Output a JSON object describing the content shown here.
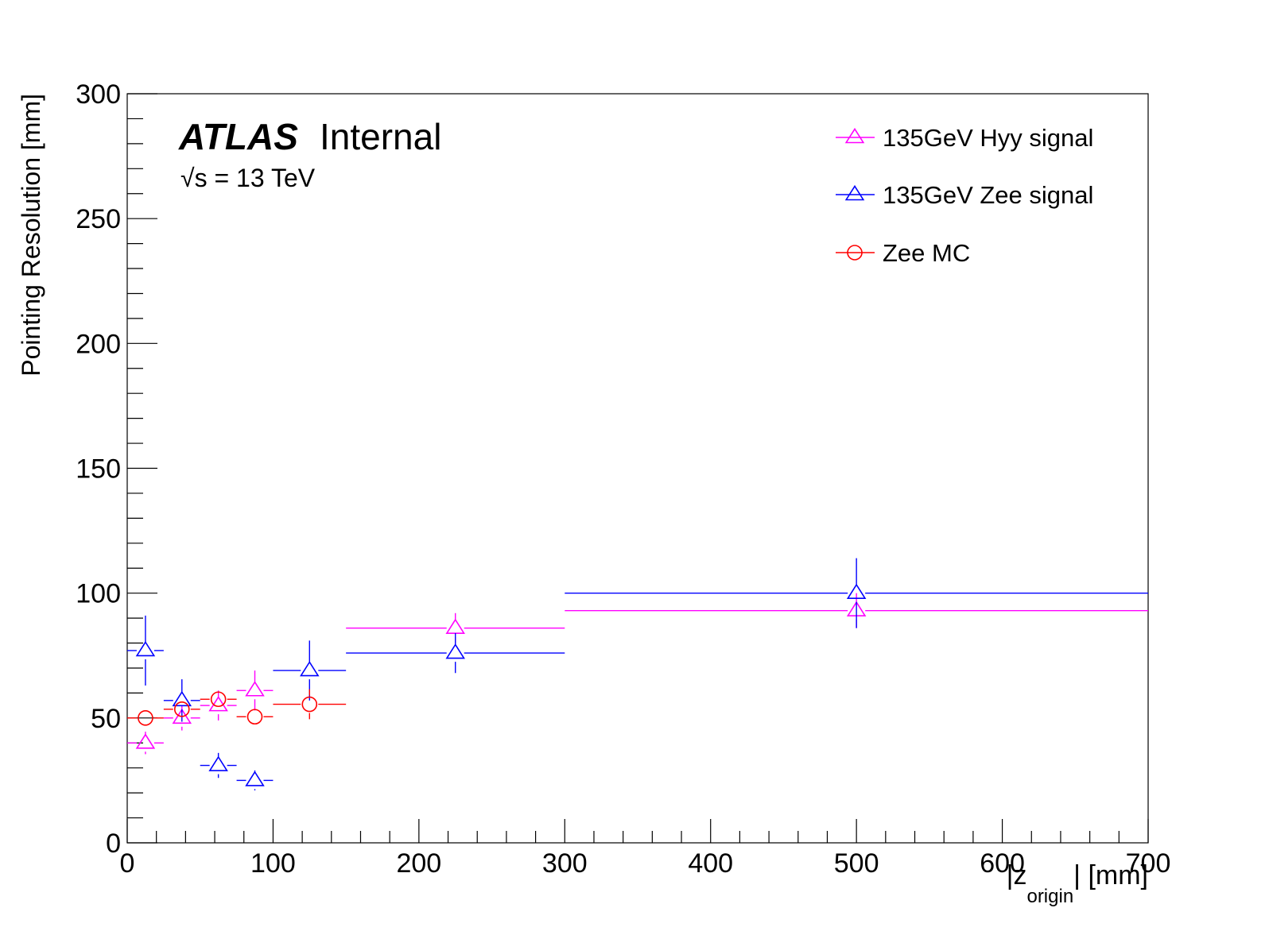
{
  "chart_data": {
    "type": "scatter",
    "title": "",
    "xlabel": "|z",
    "xlabel_sub": "origin",
    "xlabel_tail": "| [mm]",
    "ylabel": "Pointing Resolution [mm]",
    "xlim": [
      0,
      700
    ],
    "ylim": [
      0,
      300
    ],
    "x_ticks": [
      0,
      100,
      200,
      300,
      400,
      500,
      600,
      700
    ],
    "y_ticks": [
      0,
      50,
      100,
      150,
      200,
      250,
      300
    ],
    "grid": false,
    "legend_position": "top-right",
    "annotations": {
      "experiment": "ATLAS",
      "status": "Internal",
      "energy_sqrt": "√",
      "energy_s": "s",
      "energy_text": " = 13 TeV"
    },
    "series": [
      {
        "name": "135GeV Hyy signal",
        "color": "#ff00ff",
        "marker": "triangle",
        "points": [
          {
            "x": 12.5,
            "xlo": 0,
            "xhi": 25,
            "y": 40,
            "yerr": 4.5
          },
          {
            "x": 37.5,
            "xlo": 25,
            "xhi": 50,
            "y": 50,
            "yerr": 5
          },
          {
            "x": 62.5,
            "xlo": 50,
            "xhi": 75,
            "y": 55,
            "yerr": 6
          },
          {
            "x": 87.5,
            "xlo": 75,
            "xhi": 100,
            "y": 61,
            "yerr": 8
          },
          {
            "x": 225,
            "xlo": 150,
            "xhi": 300,
            "y": 86,
            "yerr": 6
          },
          {
            "x": 500,
            "xlo": 300,
            "xhi": 700,
            "y": 93,
            "yerr": 7
          }
        ]
      },
      {
        "name": "135GeV Zee signal",
        "color": "#0000ff",
        "marker": "triangle",
        "points": [
          {
            "x": 12.5,
            "xlo": 0,
            "xhi": 25,
            "y": 77,
            "yerr": 14
          },
          {
            "x": 37.5,
            "xlo": 25,
            "xhi": 50,
            "y": 57,
            "yerr": 8.5
          },
          {
            "x": 62.5,
            "xlo": 50,
            "xhi": 75,
            "y": 31,
            "yerr": 5
          },
          {
            "x": 87.5,
            "xlo": 75,
            "xhi": 100,
            "y": 25,
            "yerr": 4
          },
          {
            "x": 125,
            "xlo": 100,
            "xhi": 150,
            "y": 69,
            "yerr": 12
          },
          {
            "x": 225,
            "xlo": 150,
            "xhi": 300,
            "y": 76,
            "yerr": 8
          },
          {
            "x": 500,
            "xlo": 300,
            "xhi": 700,
            "y": 100,
            "yerr": 14
          }
        ]
      },
      {
        "name": "Zee MC",
        "color": "#ff0000",
        "marker": "circle",
        "points": [
          {
            "x": 12.5,
            "xlo": 0,
            "xhi": 25,
            "y": 50,
            "yerr": 1
          },
          {
            "x": 37.5,
            "xlo": 25,
            "xhi": 50,
            "y": 53.5,
            "yerr": 2
          },
          {
            "x": 62.5,
            "xlo": 50,
            "xhi": 75,
            "y": 57.5,
            "yerr": 3
          },
          {
            "x": 87.5,
            "xlo": 75,
            "xhi": 100,
            "y": 50.5,
            "yerr": 2
          },
          {
            "x": 125,
            "xlo": 100,
            "xhi": 150,
            "y": 55.5,
            "yerr": 6
          }
        ]
      }
    ]
  }
}
